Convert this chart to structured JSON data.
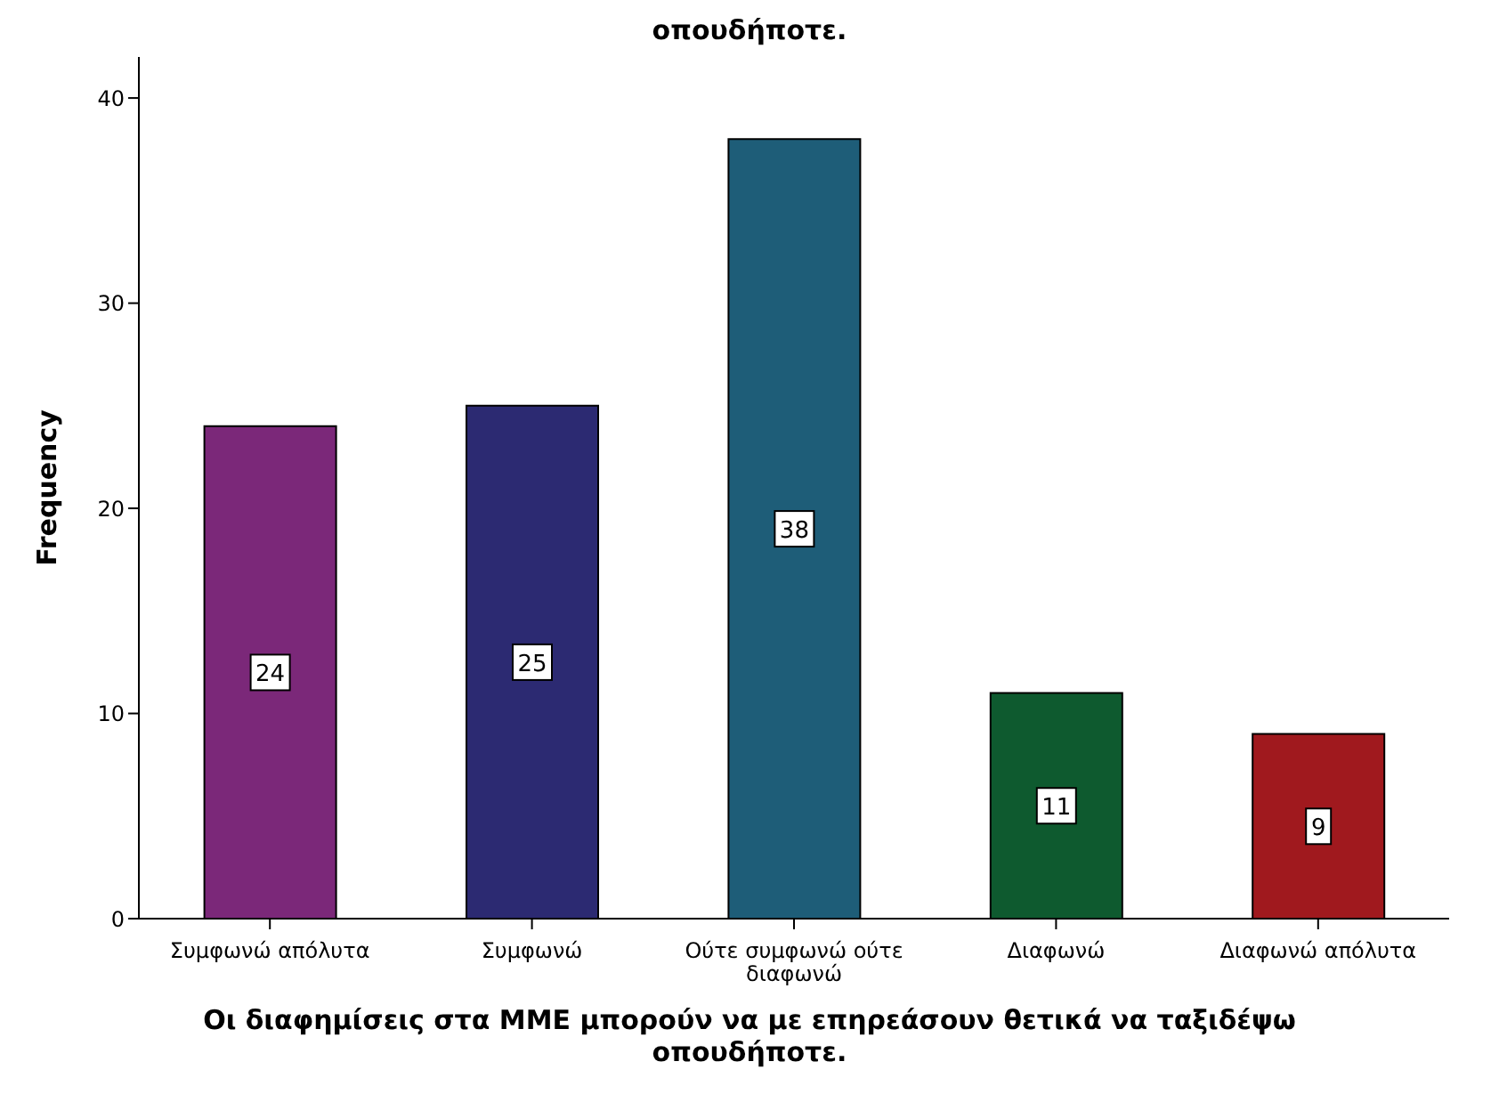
{
  "chart_data": {
    "type": "bar",
    "title": "οπουδήποτε.",
    "xlabel": "Οι διαφημίσεις στα ΜΜΕ μπορούν να με επηρεάσουν θετικά να ταξιδέψω οπουδήποτε.",
    "ylabel": "Frequency",
    "categories": [
      "Συμφωνώ απόλυτα",
      "Συμφωνώ",
      "Ούτε συμφωνώ ούτε διαφωνώ",
      "Διαφωνώ",
      "Διαφωνώ απόλυτα"
    ],
    "values": [
      24,
      25,
      38,
      11,
      9
    ],
    "colors": [
      "#7b2879",
      "#2c2a72",
      "#1e5d78",
      "#0e5a2f",
      "#a0191e"
    ],
    "ylim": [
      0,
      42
    ],
    "yticks": [
      0,
      10,
      20,
      30,
      40
    ],
    "data_labels": true
  }
}
